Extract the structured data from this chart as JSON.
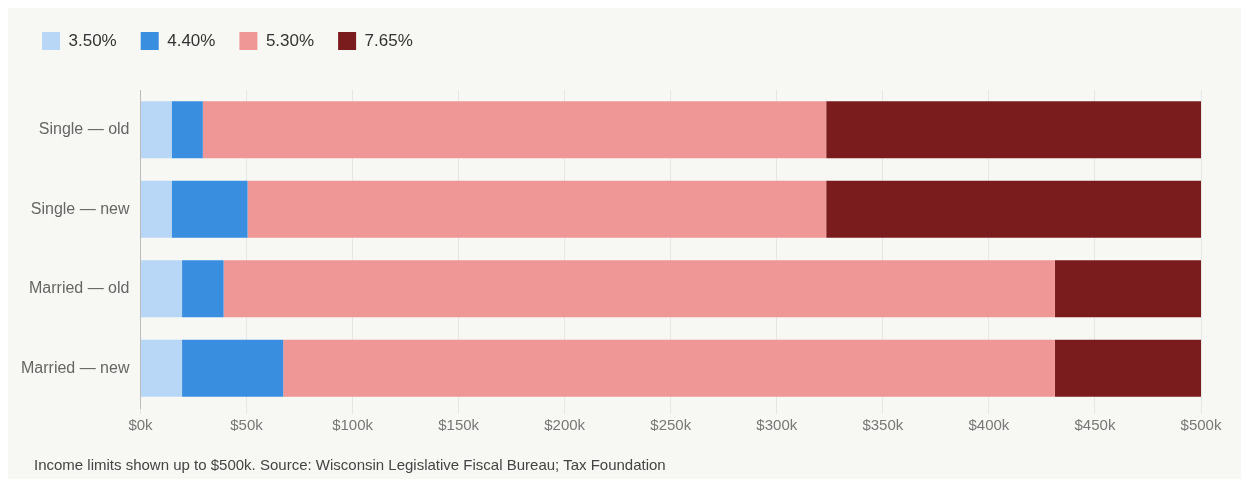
{
  "chart_data": {
    "type": "bar",
    "orientation": "horizontal",
    "stacked": true,
    "categories": [
      "Single — old",
      "Single — new",
      "Married — old",
      "Married — new"
    ],
    "series": [
      {
        "name": "3.50%",
        "color": "#b8d6f5",
        "values": [
          14.7,
          14.7,
          19.6,
          19.6
        ]
      },
      {
        "name": "4.40%",
        "color": "#3a8ee0",
        "values": [
          14.7,
          35.8,
          19.6,
          47.7
        ]
      },
      {
        "name": "5.30%",
        "color": "#ef9696",
        "values": [
          293.9,
          272.8,
          391.9,
          363.8
        ]
      },
      {
        "name": "7.65%",
        "color": "#7a1c1e",
        "values": [
          176.7,
          176.7,
          68.9,
          68.9
        ]
      }
    ],
    "xlim": [
      0,
      500
    ],
    "xticks": [
      {
        "value": 0,
        "label": "$0k"
      },
      {
        "value": 50,
        "label": "$50k"
      },
      {
        "value": 100,
        "label": "$100k"
      },
      {
        "value": 150,
        "label": "$150k"
      },
      {
        "value": 200,
        "label": "$200k"
      },
      {
        "value": 250,
        "label": "$250k"
      },
      {
        "value": 300,
        "label": "$300k"
      },
      {
        "value": 350,
        "label": "$350k"
      },
      {
        "value": 400,
        "label": "$400k"
      },
      {
        "value": 450,
        "label": "$450k"
      },
      {
        "value": 500,
        "label": "$500k"
      }
    ],
    "grid": "x",
    "legend": "top left",
    "annotations": [
      "Income limits shown up to $500k. Source: Wisconsin Legislative Fiscal Bureau; Tax Foundation"
    ]
  }
}
